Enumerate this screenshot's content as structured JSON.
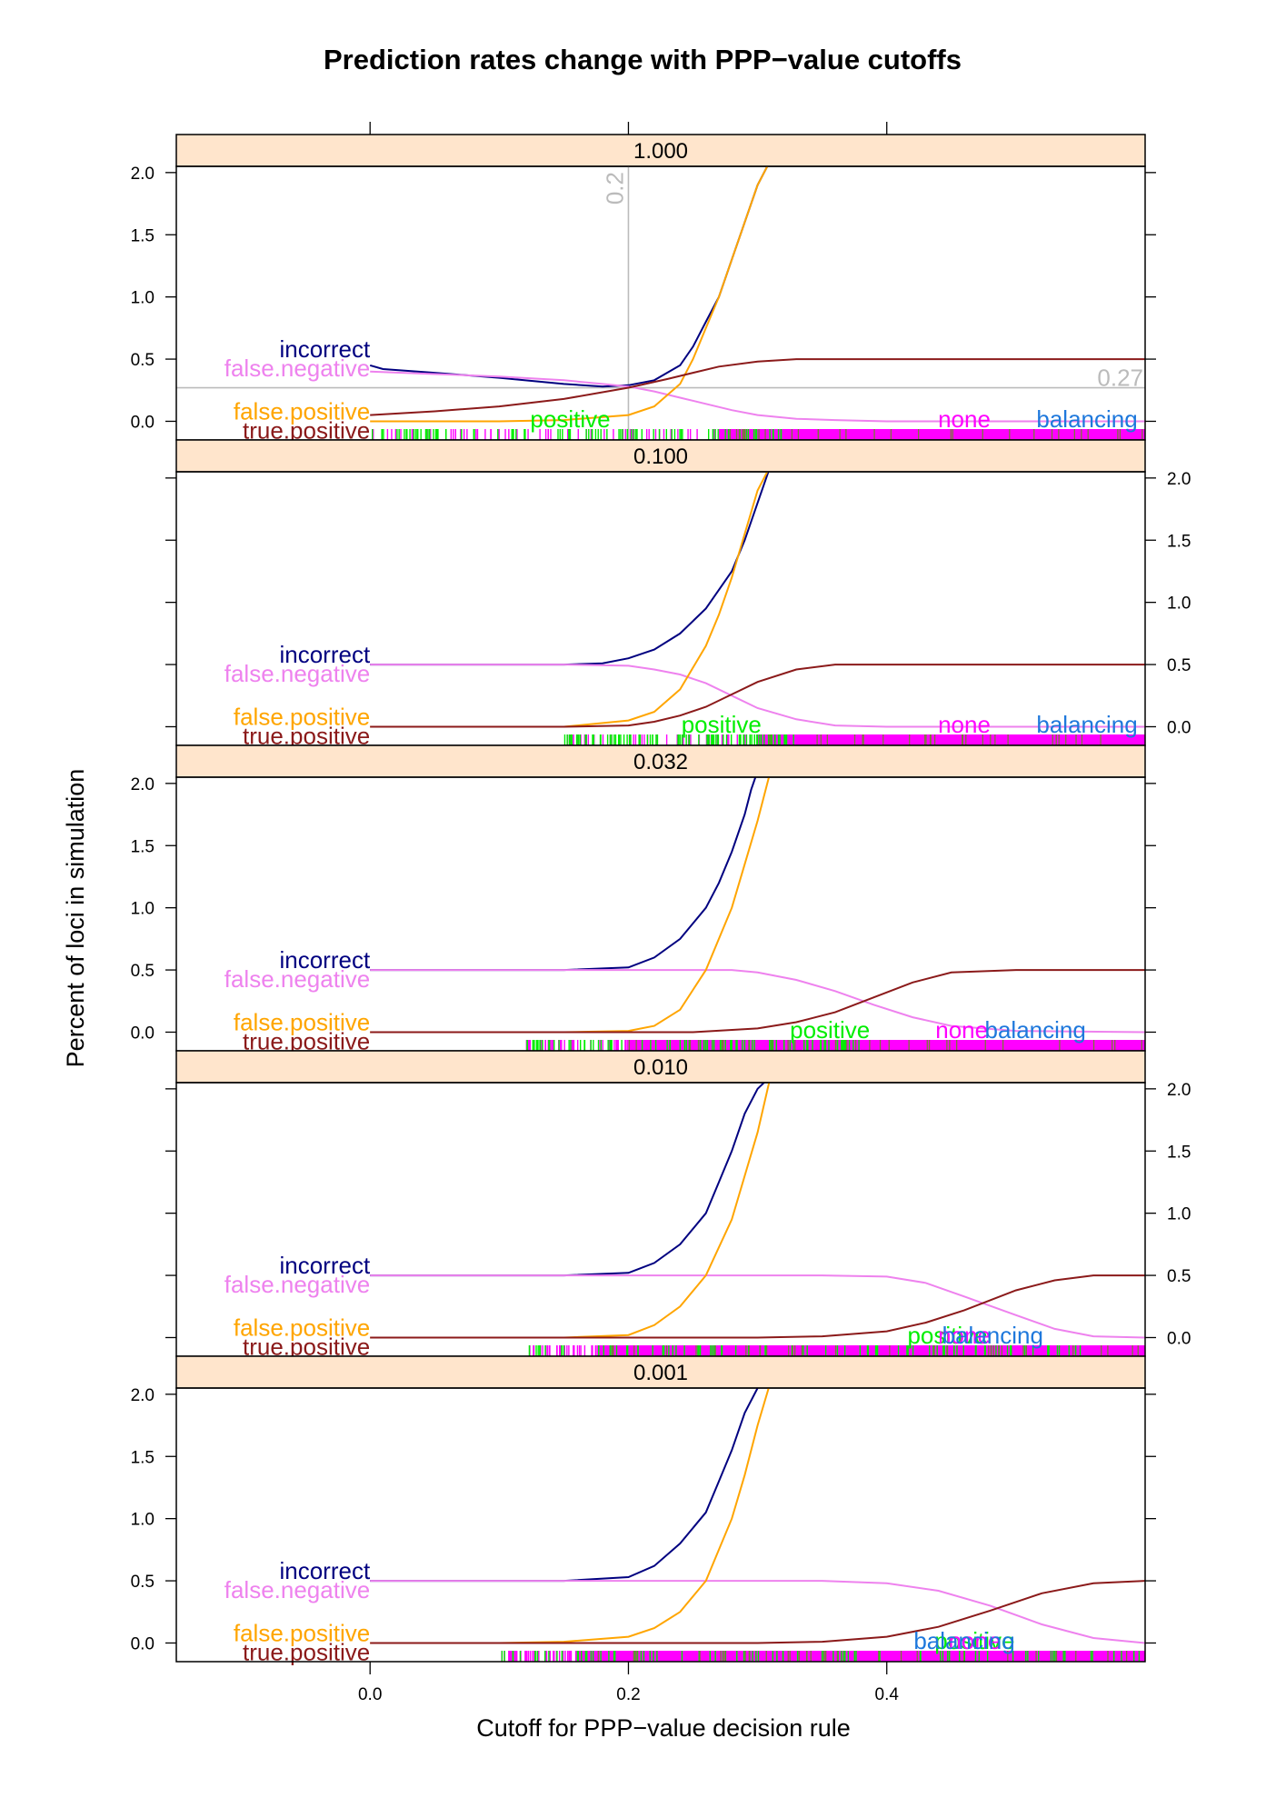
{
  "chart_data": {
    "type": "line",
    "title": "Prediction rates change with PPP−value cutoffs",
    "xlabel": "Cutoff for PPP−value decision rule",
    "ylabel": "Percent of loci in simulation",
    "xlim": [
      -0.15,
      0.6
    ],
    "ylim": [
      -0.15,
      2.05
    ],
    "x_ticks": [
      0.0,
      0.2,
      0.4
    ],
    "x_tick_labels": [
      "0.0",
      "0.2",
      "0.4"
    ],
    "y_ticks": [
      0.0,
      0.5,
      1.0,
      1.5,
      2.0
    ],
    "y_tick_labels": [
      "0.0",
      "0.5",
      "1.0",
      "1.5",
      "2.0"
    ],
    "grid": false,
    "colors": {
      "incorrect": "#000080",
      "false.negative": "#ee82ee",
      "false.positive": "#ffa500",
      "true.positive": "#8b1a1a",
      "positive": "#00ee00",
      "none": "#ff00ff",
      "balancing": "#1e78dc",
      "strip_bg": "#ffe5cc",
      "reference": "#bbbbbb"
    },
    "series_names": [
      "incorrect",
      "false.negative",
      "false.positive",
      "true.positive"
    ],
    "class_names": [
      "positive",
      "none",
      "balancing"
    ],
    "panels": [
      {
        "strip": "1.000",
        "reference": {
          "x": 0.2,
          "y": 0.27,
          "x_label": "0.2",
          "y_label": "0.27"
        },
        "rug": {
          "positive_range": [
            0.0,
            0.32
          ],
          "none_start": 0.27
        },
        "class_label_x": {
          "positive": 0.155,
          "none": 0.46,
          "balancing": 0.555
        },
        "series": [
          {
            "name": "incorrect",
            "x": [
              0.0,
              0.01,
              0.05,
              0.1,
              0.15,
              0.18,
              0.2,
              0.22,
              0.24,
              0.25,
              0.26,
              0.27,
              0.28,
              0.29,
              0.3,
              0.31
            ],
            "y": [
              0.45,
              0.42,
              0.39,
              0.35,
              0.3,
              0.28,
              0.29,
              0.33,
              0.45,
              0.6,
              0.8,
              1.0,
              1.3,
              1.6,
              1.9,
              2.1
            ]
          },
          {
            "name": "false.negative",
            "x": [
              0.0,
              0.05,
              0.1,
              0.15,
              0.18,
              0.2,
              0.22,
              0.24,
              0.26,
              0.28,
              0.3,
              0.33,
              0.36,
              0.4,
              0.6
            ],
            "y": [
              0.4,
              0.38,
              0.36,
              0.33,
              0.3,
              0.28,
              0.24,
              0.19,
              0.14,
              0.09,
              0.05,
              0.02,
              0.01,
              0.0,
              0.0
            ]
          },
          {
            "name": "false.positive",
            "x": [
              0.0,
              0.1,
              0.15,
              0.2,
              0.22,
              0.24,
              0.25,
              0.26,
              0.27,
              0.28,
              0.29,
              0.3,
              0.31
            ],
            "y": [
              0.0,
              0.0,
              0.01,
              0.05,
              0.12,
              0.3,
              0.5,
              0.75,
              1.0,
              1.3,
              1.6,
              1.9,
              2.1
            ]
          },
          {
            "name": "true.positive",
            "x": [
              0.0,
              0.05,
              0.1,
              0.15,
              0.2,
              0.23,
              0.25,
              0.27,
              0.3,
              0.33,
              0.36,
              0.4,
              0.6
            ],
            "y": [
              0.05,
              0.08,
              0.12,
              0.18,
              0.27,
              0.34,
              0.39,
              0.44,
              0.48,
              0.5,
              0.5,
              0.5,
              0.5
            ]
          }
        ]
      },
      {
        "strip": "0.100",
        "rug": {
          "positive_range": [
            0.15,
            0.33
          ],
          "none_start": 0.3
        },
        "class_label_x": {
          "positive": 0.272,
          "none": 0.46,
          "balancing": 0.555
        },
        "series": [
          {
            "name": "incorrect",
            "x": [
              0.0,
              0.15,
              0.18,
              0.2,
              0.22,
              0.24,
              0.26,
              0.28,
              0.29,
              0.3,
              0.31
            ],
            "y": [
              0.5,
              0.5,
              0.51,
              0.55,
              0.62,
              0.75,
              0.95,
              1.25,
              1.5,
              1.8,
              2.1
            ]
          },
          {
            "name": "false.negative",
            "x": [
              0.0,
              0.15,
              0.2,
              0.22,
              0.24,
              0.26,
              0.28,
              0.3,
              0.33,
              0.36,
              0.4,
              0.6
            ],
            "y": [
              0.5,
              0.5,
              0.49,
              0.46,
              0.42,
              0.35,
              0.25,
              0.15,
              0.06,
              0.01,
              0.0,
              0.0
            ]
          },
          {
            "name": "false.positive",
            "x": [
              0.0,
              0.15,
              0.2,
              0.22,
              0.24,
              0.26,
              0.27,
              0.28,
              0.29,
              0.3,
              0.31
            ],
            "y": [
              0.0,
              0.0,
              0.05,
              0.12,
              0.3,
              0.65,
              0.9,
              1.2,
              1.55,
              1.9,
              2.1
            ]
          },
          {
            "name": "true.positive",
            "x": [
              0.0,
              0.15,
              0.2,
              0.22,
              0.24,
              0.26,
              0.28,
              0.3,
              0.33,
              0.36,
              0.4,
              0.6
            ],
            "y": [
              0.0,
              0.0,
              0.01,
              0.04,
              0.09,
              0.16,
              0.26,
              0.36,
              0.46,
              0.5,
              0.5,
              0.5
            ]
          }
        ]
      },
      {
        "strip": "0.032",
        "rug": {
          "positive_range": [
            0.12,
            0.38
          ],
          "none_start": 0.2
        },
        "class_label_x": {
          "positive": 0.356,
          "none": 0.458,
          "balancing": 0.515
        },
        "series": [
          {
            "name": "incorrect",
            "x": [
              0.0,
              0.15,
              0.2,
              0.22,
              0.24,
              0.26,
              0.27,
              0.28,
              0.29,
              0.295,
              0.3
            ],
            "y": [
              0.5,
              0.5,
              0.52,
              0.6,
              0.75,
              1.0,
              1.2,
              1.45,
              1.75,
              1.95,
              2.1
            ]
          },
          {
            "name": "false.negative",
            "x": [
              0.0,
              0.2,
              0.25,
              0.28,
              0.3,
              0.33,
              0.36,
              0.39,
              0.42,
              0.45,
              0.5,
              0.6
            ],
            "y": [
              0.5,
              0.5,
              0.5,
              0.5,
              0.48,
              0.42,
              0.33,
              0.22,
              0.12,
              0.05,
              0.01,
              0.0
            ]
          },
          {
            "name": "false.positive",
            "x": [
              0.0,
              0.15,
              0.2,
              0.22,
              0.24,
              0.26,
              0.28,
              0.29,
              0.3,
              0.31
            ],
            "y": [
              0.0,
              0.0,
              0.01,
              0.05,
              0.18,
              0.5,
              1.0,
              1.35,
              1.7,
              2.1
            ]
          },
          {
            "name": "true.positive",
            "x": [
              0.0,
              0.2,
              0.25,
              0.3,
              0.33,
              0.36,
              0.39,
              0.42,
              0.45,
              0.5,
              0.6
            ],
            "y": [
              0.0,
              0.0,
              0.0,
              0.03,
              0.08,
              0.16,
              0.28,
              0.4,
              0.48,
              0.5,
              0.5
            ]
          }
        ]
      },
      {
        "strip": "0.010",
        "rug": {
          "positive_range": [
            0.12,
            0.55
          ],
          "none_start": 0.18
        },
        "class_label_x": {
          "positive": 0.447,
          "none": 0.46,
          "balancing": 0.482
        },
        "series": [
          {
            "name": "incorrect",
            "x": [
              0.0,
              0.15,
              0.2,
              0.22,
              0.24,
              0.26,
              0.27,
              0.28,
              0.29,
              0.3,
              0.31
            ],
            "y": [
              0.5,
              0.5,
              0.52,
              0.6,
              0.75,
              1.0,
              1.25,
              1.5,
              1.8,
              2.0,
              2.1
            ]
          },
          {
            "name": "false.negative",
            "x": [
              0.0,
              0.25,
              0.3,
              0.35,
              0.4,
              0.43,
              0.46,
              0.5,
              0.53,
              0.56,
              0.6
            ],
            "y": [
              0.5,
              0.5,
              0.5,
              0.5,
              0.49,
              0.44,
              0.33,
              0.18,
              0.07,
              0.01,
              0.0
            ]
          },
          {
            "name": "false.positive",
            "x": [
              0.0,
              0.15,
              0.2,
              0.22,
              0.24,
              0.26,
              0.28,
              0.29,
              0.3,
              0.31
            ],
            "y": [
              0.0,
              0.0,
              0.02,
              0.1,
              0.25,
              0.5,
              0.95,
              1.3,
              1.65,
              2.1
            ]
          },
          {
            "name": "true.positive",
            "x": [
              0.0,
              0.3,
              0.35,
              0.4,
              0.43,
              0.46,
              0.5,
              0.53,
              0.56,
              0.6
            ],
            "y": [
              0.0,
              0.0,
              0.01,
              0.05,
              0.12,
              0.22,
              0.38,
              0.46,
              0.5,
              0.5
            ]
          }
        ]
      },
      {
        "strip": "0.001",
        "rug": {
          "positive_range": [
            0.1,
            0.6
          ],
          "none_start": 0.16
        },
        "class_label_x": {
          "positive": 0.468,
          "none": 0.468,
          "balancing": 0.46
        },
        "series": [
          {
            "name": "incorrect",
            "x": [
              0.0,
              0.15,
              0.2,
              0.22,
              0.24,
              0.26,
              0.27,
              0.28,
              0.29,
              0.3,
              0.31
            ],
            "y": [
              0.5,
              0.5,
              0.53,
              0.62,
              0.8,
              1.05,
              1.3,
              1.55,
              1.85,
              2.05,
              2.1
            ]
          },
          {
            "name": "false.negative",
            "x": [
              0.0,
              0.3,
              0.35,
              0.4,
              0.44,
              0.48,
              0.52,
              0.56,
              0.6
            ],
            "y": [
              0.5,
              0.5,
              0.5,
              0.48,
              0.42,
              0.3,
              0.15,
              0.04,
              0.0
            ]
          },
          {
            "name": "false.positive",
            "x": [
              0.0,
              0.1,
              0.15,
              0.2,
              0.22,
              0.24,
              0.26,
              0.28,
              0.29,
              0.3,
              0.31
            ],
            "y": [
              0.0,
              0.0,
              0.01,
              0.05,
              0.12,
              0.25,
              0.5,
              1.0,
              1.35,
              1.75,
              2.1
            ]
          },
          {
            "name": "true.positive",
            "x": [
              0.0,
              0.3,
              0.35,
              0.4,
              0.44,
              0.48,
              0.52,
              0.56,
              0.6
            ],
            "y": [
              0.0,
              0.0,
              0.01,
              0.05,
              0.13,
              0.26,
              0.4,
              0.48,
              0.5
            ]
          }
        ]
      }
    ]
  }
}
